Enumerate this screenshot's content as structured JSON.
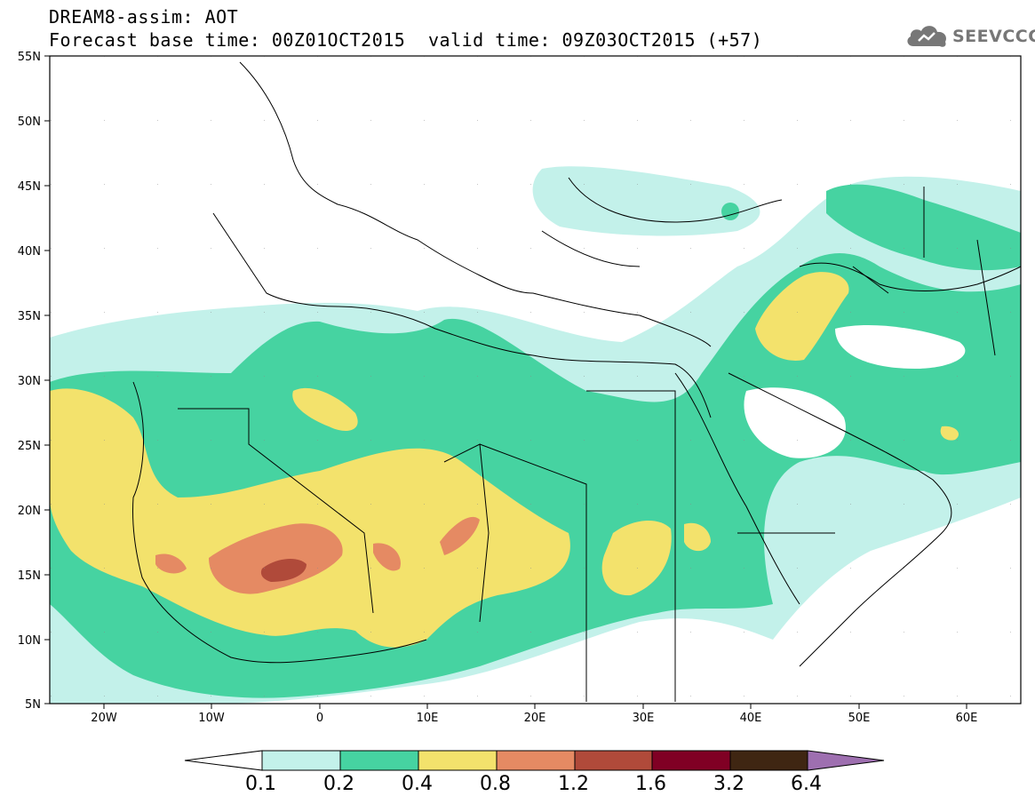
{
  "header": {
    "line1": "DREAM8-assim: AOT",
    "line2": "Forecast base time: 00Z01OCT2015",
    "valid": "valid time: 09Z03OCT2015 (+57)"
  },
  "logo": {
    "text": "SEEVCCC",
    "icon": "cloud-icon",
    "color": "#777777"
  },
  "map": {
    "lat_labels": [
      "55N",
      "50N",
      "45N",
      "40N",
      "35N",
      "30N",
      "25N",
      "20N",
      "15N",
      "10N",
      "5N"
    ],
    "lon_labels": [
      "20W",
      "10W",
      "0",
      "10E",
      "20E",
      "30E",
      "40E",
      "50E",
      "60E"
    ]
  },
  "colorbar": {
    "labels": [
      "0.1",
      "0.2",
      "0.4",
      "0.8",
      "1.2",
      "1.6",
      "3.2",
      "6.4"
    ],
    "colors": [
      "#ffffff",
      "#c3f1ea",
      "#46d3a1",
      "#f3e26c",
      "#e58a63",
      "#b04a3a",
      "#800024",
      "#3f2612",
      "#9e6fb0"
    ]
  }
}
